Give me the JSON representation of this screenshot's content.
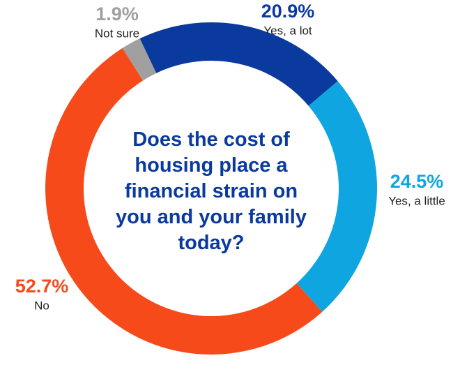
{
  "chart_data": {
    "type": "pie",
    "title": "Does the cost of housing place a financial strain on you and your family today?",
    "categories": [
      "Yes, a lot",
      "Yes, a little",
      "No",
      "Not sure"
    ],
    "values": [
      20.9,
      24.5,
      52.7,
      1.9
    ],
    "value_labels": [
      "20.9%",
      "24.5%",
      "52.7%",
      "1.9%"
    ],
    "colors": [
      "#0a3a9e",
      "#0ea5e0",
      "#f64a1a",
      "#a0a0a0"
    ]
  }
}
